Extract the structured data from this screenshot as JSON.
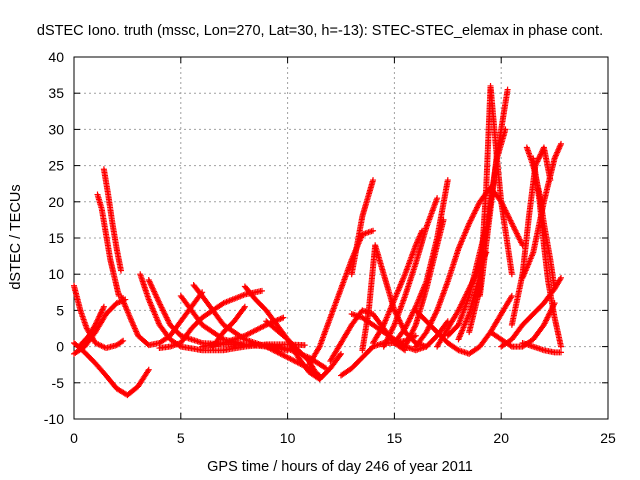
{
  "chart_data": {
    "type": "scatter",
    "title": "dSTEC Iono. truth (mssc, Lon=270, Lat=30, h=-13): STEC-STEC_elemax in phase cont.",
    "xlabel": "GPS time / hours of day 246 of year 2011",
    "ylabel": "dSTEC  / TECUs",
    "xlim": [
      0,
      25
    ],
    "ylim": [
      -10,
      40
    ],
    "xticks": [
      "0",
      "5",
      "10",
      "15",
      "20",
      "25"
    ],
    "yticks": [
      "-10",
      "-5",
      "0",
      "5",
      "10",
      "15",
      "20",
      "25",
      "30",
      "35",
      "40"
    ],
    "grid": true,
    "marker": "+",
    "colors": {
      "series": "#ff0000",
      "grid": "#a0a0a0",
      "axis": "#000000"
    },
    "series": [
      {
        "x": [
          0.0,
          0.5,
          1.0,
          1.5,
          2.0,
          2.5,
          3.0,
          3.5
        ],
        "y": [
          0.5,
          -0.8,
          -2.3,
          -4.0,
          -5.8,
          -6.7,
          -5.5,
          -3.2
        ]
      },
      {
        "x": [
          0.0,
          0.3,
          0.6,
          1.0,
          1.5,
          2.0,
          2.3
        ],
        "y": [
          8.4,
          5.0,
          2.5,
          0.5,
          -0.2,
          0.2,
          0.8
        ]
      },
      {
        "x": [
          0.0,
          0.5,
          1.0,
          1.5,
          2.0,
          2.4
        ],
        "y": [
          -1.0,
          0.0,
          2.0,
          4.5,
          6.0,
          6.5
        ]
      },
      {
        "x": [
          0.3,
          0.7,
          1.0,
          1.4
        ],
        "y": [
          0.2,
          1.5,
          3.0,
          5.5
        ]
      },
      {
        "x": [
          1.1,
          1.3,
          1.5,
          1.7,
          1.9,
          2.1
        ],
        "y": [
          21.0,
          19.0,
          15.5,
          12.0,
          9.5,
          7.0
        ]
      },
      {
        "x": [
          1.4,
          1.6,
          1.8,
          2.0,
          2.2
        ],
        "y": [
          24.5,
          21.0,
          17.0,
          13.5,
          10.5
        ]
      },
      {
        "x": [
          2.2,
          2.7,
          3.0,
          3.5,
          4.0,
          4.5,
          5.0,
          5.5,
          6.0
        ],
        "y": [
          7.0,
          3.5,
          1.5,
          0.2,
          0.5,
          1.5,
          3.5,
          5.5,
          7.5
        ]
      },
      {
        "x": [
          3.1,
          3.5,
          4.0,
          4.5,
          5.0,
          6.0,
          7.0,
          8.0,
          9.0,
          10.0,
          10.8
        ],
        "y": [
          10.0,
          6.5,
          3.0,
          1.0,
          0.0,
          -0.5,
          -0.5,
          0.0,
          0.3,
          0.3,
          0.2
        ]
      },
      {
        "x": [
          3.5,
          4.0,
          4.5,
          5.0,
          6.0,
          7.0,
          8.0,
          9.0,
          10.0,
          11.0,
          11.8
        ],
        "y": [
          9.2,
          6.0,
          3.0,
          1.5,
          0.5,
          0.3,
          0.2,
          0.2,
          -0.3,
          -1.5,
          -3.0
        ]
      },
      {
        "x": [
          4.0,
          4.5,
          5.0,
          5.5,
          6.0,
          7.0,
          8.0,
          8.8
        ],
        "y": [
          -0.2,
          0.0,
          0.5,
          2.5,
          4.0,
          6.0,
          7.2,
          7.7
        ]
      },
      {
        "x": [
          5.0,
          5.5,
          6.0,
          7.0,
          8.0,
          9.0,
          10.0
        ],
        "y": [
          7.0,
          5.0,
          3.0,
          1.0,
          0.3,
          0.0,
          -0.5
        ]
      },
      {
        "x": [
          5.6,
          6.0,
          6.5,
          7.0,
          8.0,
          9.0,
          10.0,
          11.0,
          11.5
        ],
        "y": [
          8.5,
          7.0,
          5.0,
          3.0,
          1.0,
          0.0,
          -1.5,
          -3.0,
          -4.0
        ]
      },
      {
        "x": [
          6.0,
          7.0,
          8.0,
          9.0,
          9.8
        ],
        "y": [
          0.0,
          0.5,
          1.5,
          3.0,
          4.0
        ]
      },
      {
        "x": [
          6.5,
          7.0,
          7.5,
          8.0
        ],
        "y": [
          0.0,
          2.0,
          3.5,
          5.5
        ]
      },
      {
        "x": [
          8.0,
          8.5,
          9.0,
          9.5,
          10.0,
          10.5,
          11.0,
          11.5
        ],
        "y": [
          8.3,
          6.5,
          5.0,
          3.0,
          1.0,
          -1.5,
          -3.5,
          -4.5
        ]
      },
      {
        "x": [
          9.0,
          10.0,
          11.0,
          11.5,
          12.0,
          12.5
        ],
        "y": [
          3.5,
          1.0,
          -2.0,
          -4.5,
          -3.0,
          -1.0
        ]
      },
      {
        "x": [
          11.0,
          11.5,
          12.0,
          12.5,
          13.0,
          13.5,
          14.0
        ],
        "y": [
          -2.5,
          0.0,
          4.0,
          8.0,
          12.0,
          15.5,
          16.0
        ]
      },
      {
        "x": [
          12.0,
          12.5,
          13.0,
          13.5,
          14.0,
          14.5,
          15.0,
          15.5
        ],
        "y": [
          -2.0,
          0.5,
          3.0,
          5.0,
          4.5,
          2.5,
          0.5,
          -0.5
        ]
      },
      {
        "x": [
          12.5,
          13.0,
          13.5,
          14.0,
          14.5,
          15.0,
          15.5,
          16.0
        ],
        "y": [
          -4.0,
          -3.0,
          -1.5,
          0.0,
          0.5,
          0.5,
          0.8,
          1.5
        ]
      },
      {
        "x": [
          13.0,
          13.5,
          14.0,
          14.5,
          15.0,
          15.5,
          16.0,
          16.5,
          17.0,
          17.5
        ],
        "y": [
          4.5,
          4.0,
          3.0,
          2.0,
          1.0,
          0.0,
          -0.5,
          0.0,
          1.5,
          3.5
        ]
      },
      {
        "x": [
          13.5,
          13.8,
          14.1,
          14.5,
          15.0,
          15.5,
          16.0,
          16.5
        ],
        "y": [
          -0.5,
          5.0,
          14.0,
          10.0,
          5.0,
          2.0,
          0.5,
          0.0
        ]
      },
      {
        "x": [
          13.0,
          13.5,
          14.0
        ],
        "y": [
          10.0,
          18.0,
          23.0
        ]
      },
      {
        "x": [
          14.0,
          14.5,
          15.0,
          15.5,
          16.0,
          16.3
        ],
        "y": [
          0.5,
          3.0,
          6.5,
          10.0,
          14.0,
          16.0
        ]
      },
      {
        "x": [
          14.5,
          15.0,
          15.5,
          16.0,
          16.5,
          17.0
        ],
        "y": [
          0.0,
          3.0,
          7.0,
          11.5,
          16.5,
          20.5
        ]
      },
      {
        "x": [
          15.0,
          15.5,
          16.0,
          16.5,
          17.0,
          17.5
        ],
        "y": [
          0.5,
          2.5,
          5.5,
          9.0,
          15.0,
          23.0
        ]
      },
      {
        "x": [
          15.5,
          16.0,
          16.5,
          17.0,
          17.3
        ],
        "y": [
          0.0,
          3.0,
          8.0,
          14.0,
          17.5
        ]
      },
      {
        "x": [
          16.0,
          16.5,
          17.0,
          17.5,
          18.0,
          18.5,
          19.0,
          19.5,
          20.0,
          20.5,
          21.0
        ],
        "y": [
          0.0,
          2.0,
          5.0,
          9.0,
          13.5,
          17.0,
          20.0,
          22.0,
          20.0,
          17.0,
          14.0
        ]
      },
      {
        "x": [
          16.0,
          16.5,
          17.0,
          17.5,
          18.0,
          18.5,
          19.0,
          19.5,
          20.0,
          20.5
        ],
        "y": [
          5.0,
          3.5,
          2.0,
          0.5,
          -0.5,
          -1.0,
          0.0,
          2.0,
          4.5,
          7.0
        ]
      },
      {
        "x": [
          17.0,
          17.5,
          18.0,
          18.5,
          19.0,
          19.3
        ],
        "y": [
          0.0,
          2.5,
          5.0,
          8.0,
          11.0,
          13.0
        ]
      },
      {
        "x": [
          17.5,
          18.0,
          18.5,
          19.0,
          19.3
        ],
        "y": [
          1.5,
          3.0,
          7.0,
          13.0,
          16.5
        ]
      },
      {
        "x": [
          18.0,
          18.5,
          19.0,
          19.3,
          19.5,
          19.8,
          20.2
        ],
        "y": [
          1.0,
          4.5,
          10.0,
          16.0,
          20.0,
          26.0,
          30.0
        ]
      },
      {
        "x": [
          18.5,
          19.0,
          19.3,
          19.5,
          19.8,
          20.0,
          20.3,
          20.5
        ],
        "y": [
          2.0,
          8.0,
          22.0,
          36.0,
          26.0,
          20.0,
          14.0,
          10.0
        ]
      },
      {
        "x": [
          19.0,
          19.5,
          19.8,
          20.0,
          20.3
        ],
        "y": [
          7.0,
          19.0,
          26.5,
          30.0,
          35.5
        ]
      },
      {
        "x": [
          19.5,
          20.0,
          20.5,
          21.0,
          21.5,
          22.0,
          22.5
        ],
        "y": [
          2.0,
          1.0,
          0.0,
          0.0,
          1.0,
          3.0,
          6.0
        ]
      },
      {
        "x": [
          20.0,
          20.5,
          21.0,
          21.5,
          22.0,
          22.5,
          22.8
        ],
        "y": [
          0.0,
          1.0,
          3.0,
          4.5,
          6.0,
          8.0,
          9.5
        ]
      },
      {
        "x": [
          20.5,
          21.0,
          21.3,
          21.6,
          22.0,
          22.3
        ],
        "y": [
          3.0,
          10.0,
          18.0,
          25.0,
          27.5,
          23.0
        ]
      },
      {
        "x": [
          21.2,
          21.5,
          21.8,
          22.0,
          22.3,
          22.5
        ],
        "y": [
          27.5,
          25.0,
          21.0,
          17.0,
          12.0,
          8.0
        ]
      },
      {
        "x": [
          21.5,
          21.8,
          22.0,
          22.2,
          22.5,
          22.8
        ],
        "y": [
          26.0,
          20.0,
          14.0,
          9.0,
          4.0,
          0.0
        ]
      },
      {
        "x": [
          21.0,
          21.5,
          22.0,
          22.5,
          22.8
        ],
        "y": [
          9.5,
          13.0,
          20.0,
          26.0,
          28.0
        ]
      },
      {
        "x": [
          21.0,
          21.5,
          22.0,
          22.5,
          22.8
        ],
        "y": [
          0.5,
          0.0,
          -0.5,
          -0.8,
          -0.8
        ]
      }
    ]
  }
}
